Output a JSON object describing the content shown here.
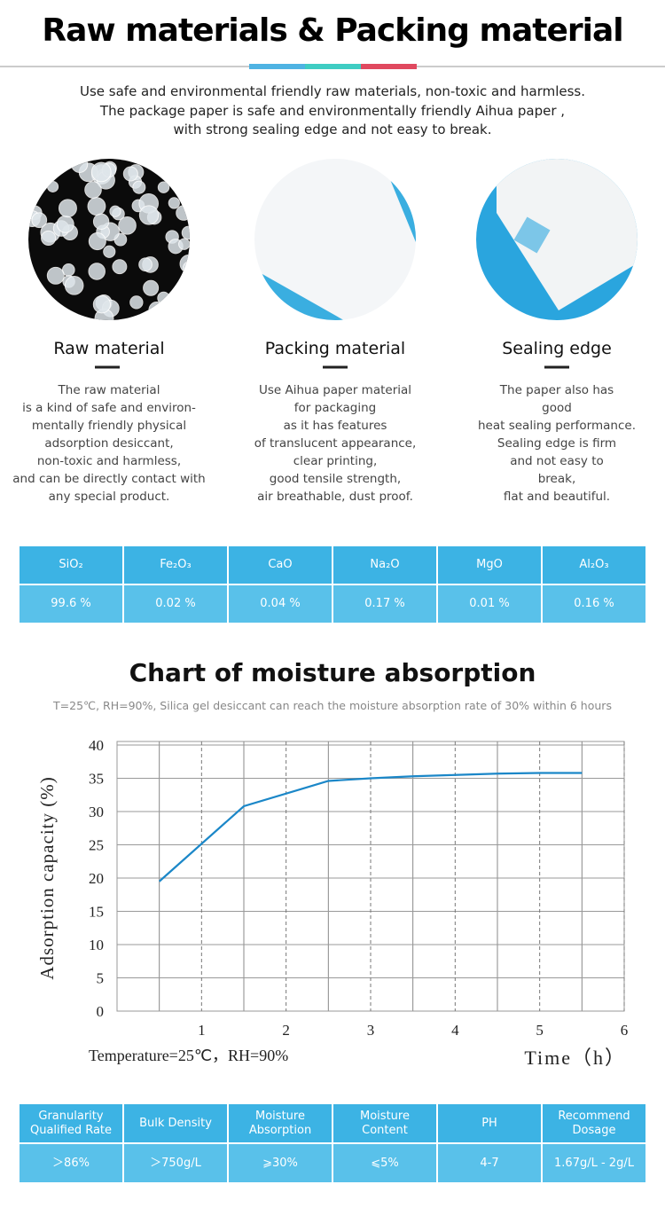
{
  "header": {
    "title": "Raw materials & Packing material"
  },
  "intro": [
    "Use safe and environmental friendly raw materials, non-toxic and harmless.",
    "The package paper is safe and environmentally friendly Aihua paper ,",
    "with strong sealing edge and not easy to break."
  ],
  "features": [
    {
      "title": "Raw material",
      "lines": [
        "The raw material",
        "is a kind of safe and environ-",
        "mentally friendly physical",
        "adsorption desiccant,",
        "non-toxic and harmless,",
        "and can be directly contact with",
        "any special product."
      ]
    },
    {
      "title": "Packing material",
      "lines": [
        "Use Aihua paper material",
        "for packaging",
        "as it has features",
        "of translucent appearance,",
        "clear printing,",
        "good tensile strength,",
        "air breathable, dust proof."
      ]
    },
    {
      "title": "Sealing edge",
      "lines": [
        "The paper also has",
        "good",
        "heat sealing performance.",
        "Sealing edge is firm",
        "and not easy to",
        "break,",
        "flat and beautiful."
      ]
    }
  ],
  "composition": {
    "headers": [
      "SiO₂",
      "Fe₂O₃",
      "CaO",
      "Na₂O",
      "MgO",
      "Al₂O₃"
    ],
    "values": [
      "99.6 %",
      "0.02 %",
      "0.04 %",
      "0.17 %",
      "0.01 %",
      "0.16 %"
    ]
  },
  "chart_data": {
    "type": "line",
    "title": "Chart of moisture absorption",
    "subtitle": "T=25℃,    RH=90%, Silica gel desiccant can reach the moisture absorption rate of 30% within 6 hours",
    "y_label": "Adsorption capacity   (%)",
    "x_label": "Time（h）",
    "x_note": "Temperature=25℃，RH=90%",
    "x": [
      0.5,
      1.5,
      2.5,
      3,
      3.5,
      4,
      4.5,
      5,
      5.5
    ],
    "series": [
      {
        "color": "#1b87c8",
        "values": [
          19.5,
          30.8,
          34.6,
          35,
          35.3,
          35.5,
          35.7,
          35.8,
          35.8
        ]
      }
    ],
    "xlim": [
      0,
      6
    ],
    "xticks": [
      1,
      2,
      3,
      4,
      5,
      6
    ],
    "ylim": [
      0,
      40
    ],
    "yticks": [
      0,
      5,
      10,
      15,
      20,
      25,
      30,
      35,
      40
    ],
    "grid": true
  },
  "specs": {
    "headers": [
      "Granularity Qualified Rate",
      "Bulk Density",
      "Moisture Absorption",
      "Moisture Content",
      "PH",
      "Recommend Dosage"
    ],
    "values": [
      "＞86%",
      "＞750g/L",
      "⩾30%",
      "⩽5%",
      "4-7",
      "1.67g/L - 2g/L"
    ]
  }
}
